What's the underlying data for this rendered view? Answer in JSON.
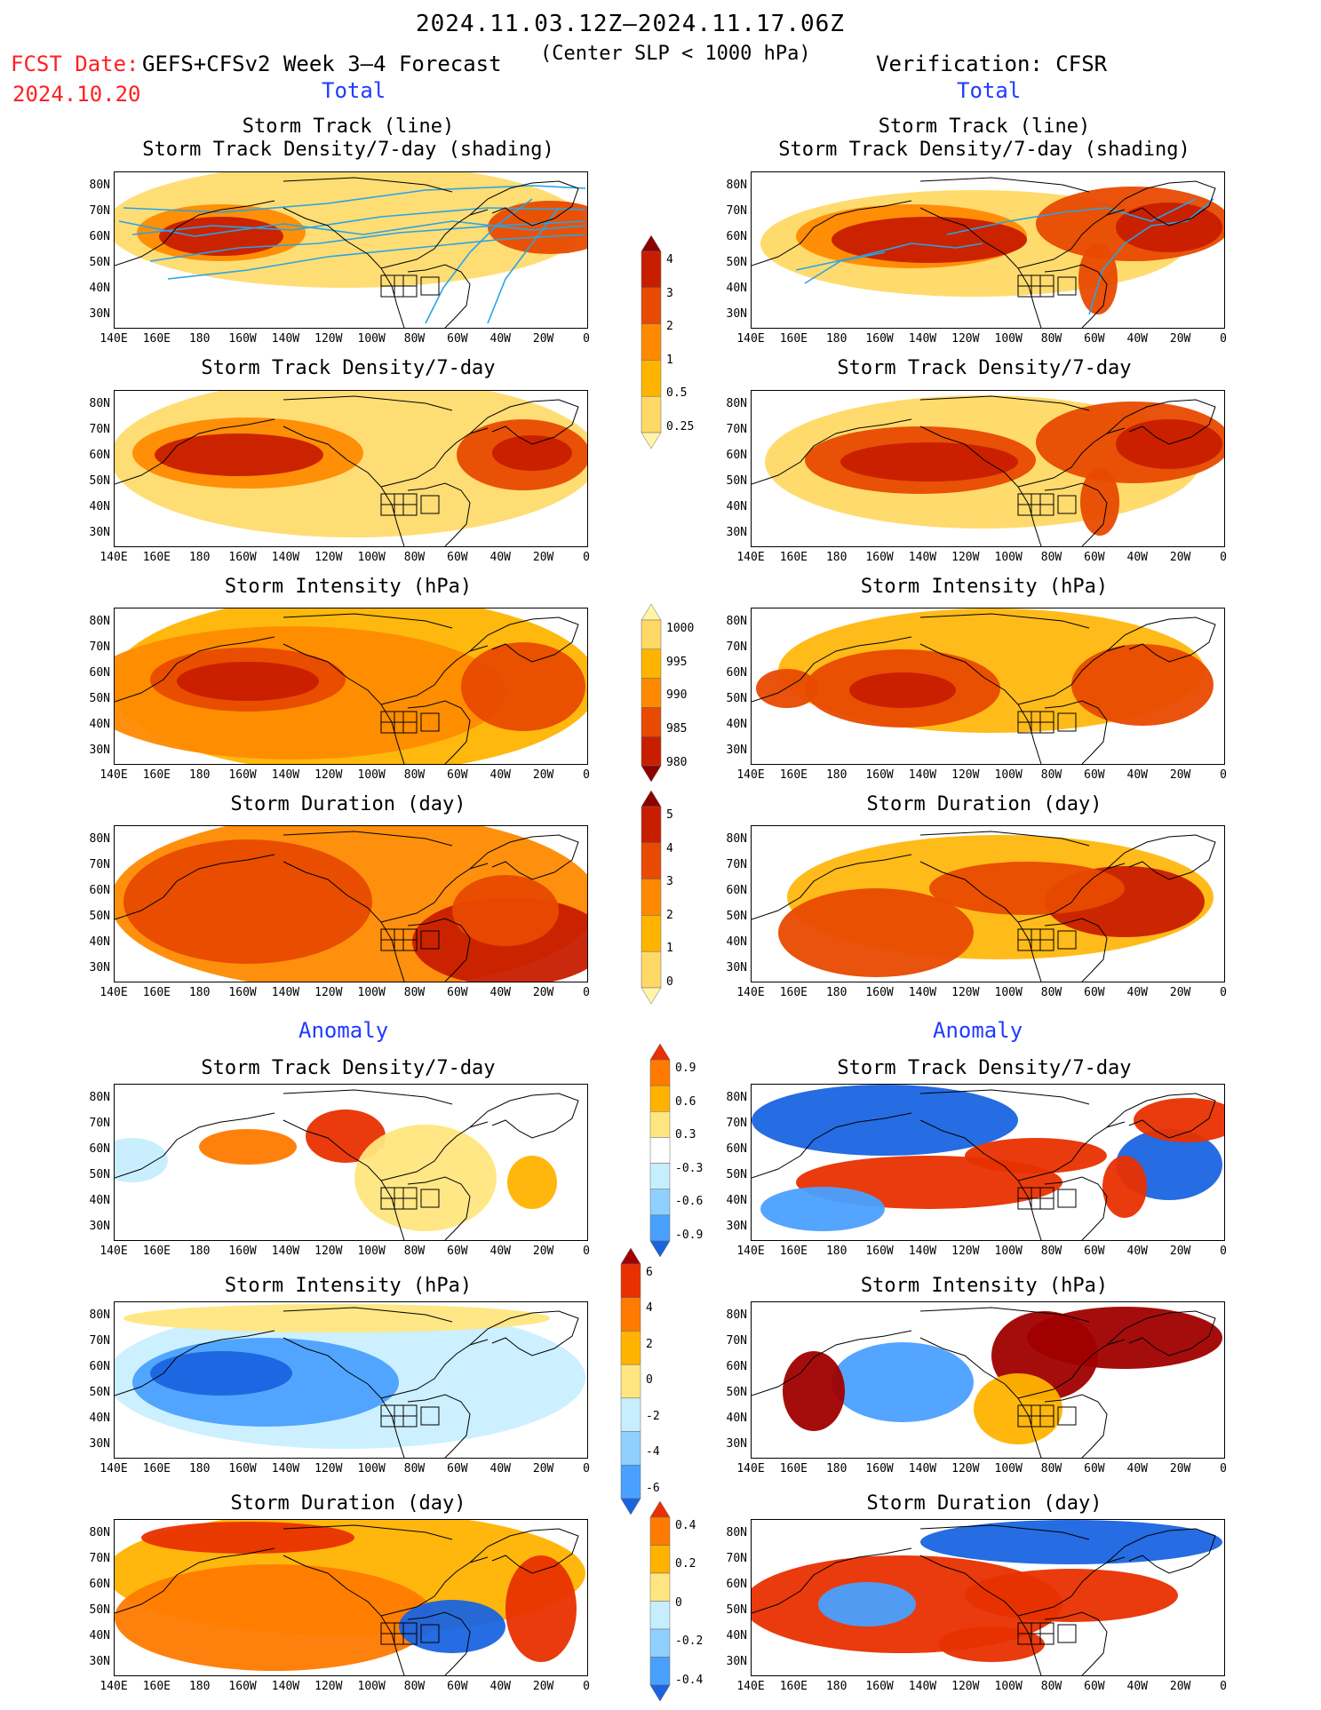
{
  "header": {
    "period": "2024.11.03.12Z–2024.11.17.06Z",
    "fcst_label": "FCST Date:",
    "fcst_date": "2024.10.20",
    "forecast_name": "GEFS+CFSv2 Week 3–4 Forecast",
    "subtitle": "(Center SLP < 1000 hPa)",
    "verification": "Verification: CFSR"
  },
  "sections": {
    "total_label": "Total",
    "anomaly_label": "Anomaly"
  },
  "panel_titles": {
    "track_line": "Storm Track (line)",
    "track_density_shading": "Storm Track Density/7-day (shading)",
    "track_density": "Storm Track Density/7-day",
    "intensity": "Storm Intensity (hPa)",
    "duration": "Storm Duration (day)"
  },
  "axes": {
    "lat_ticks": [
      "80N",
      "70N",
      "60N",
      "50N",
      "40N",
      "30N"
    ],
    "lon_ticks": [
      "140E",
      "160E",
      "180",
      "160W",
      "140W",
      "120W",
      "100W",
      "80W",
      "60W",
      "40W",
      "20W",
      "0"
    ]
  },
  "colorbars": {
    "density_total": [
      "4",
      "3",
      "2",
      "1",
      "0.5",
      "0.25"
    ],
    "intensity_total": [
      "1000",
      "995",
      "990",
      "985",
      "980"
    ],
    "duration_total": [
      "5",
      "4",
      "3",
      "2",
      "1",
      "0"
    ],
    "density_anom": [
      "0.9",
      "0.6",
      "0.3",
      "-0.3",
      "-0.6",
      "-0.9"
    ],
    "intensity_anom": [
      "6",
      "4",
      "2",
      "0",
      "-2",
      "-4",
      "-6"
    ],
    "duration_anom": [
      "0.4",
      "0.2",
      "0",
      "-0.2",
      "-0.4"
    ]
  },
  "colors": {
    "total_scale": [
      "#fff5a8",
      "#ffd966",
      "#ffb400",
      "#ff8a00",
      "#e84a00",
      "#c81e00",
      "#8c0000"
    ],
    "anomaly_warm": [
      "#ffe680",
      "#ffb300",
      "#ff7a00",
      "#e83000",
      "#a00000"
    ],
    "anomaly_cool": [
      "#c6eeff",
      "#8fd0ff",
      "#4aa0ff",
      "#1a64e0"
    ],
    "track_line": "#29a3e6",
    "label_red": "#ff2020",
    "label_blue": "#1f3cff"
  }
}
